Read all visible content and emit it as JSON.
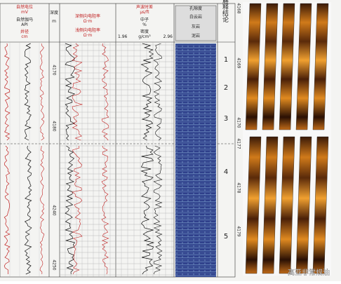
{
  "header": {
    "track1": {
      "sp": "自然电位",
      "sp_unit": "mV",
      "gr": "自然伽马",
      "gr_unit": "API",
      "cal": "井径",
      "cal_unit": "cm"
    },
    "depth": {
      "title": "深度",
      "unit": "m"
    },
    "track3": {
      "deep": "深侧向电阻率",
      "deep_unit": "Ω·m",
      "shallow": "浅侧向电阻率",
      "shallow_unit": "Ω·m"
    },
    "track4": {
      "ac": "声波时差",
      "ac_unit": "μs/ft",
      "cnl": "中子",
      "cnl_unit": "%",
      "den": "密度",
      "den_unit": "g/cm³",
      "den_min": 1.96,
      "den_max": 2.96
    },
    "track5": {
      "por": "孔隙度",
      "lith1": "白云岩",
      "lith2": "灰岩",
      "lith3": "泥岩"
    },
    "track6": {
      "title": "解释结论"
    }
  },
  "depth_labels": [
    4170,
    4180,
    4240,
    4250
  ],
  "conclusions": [
    1,
    2,
    3,
    4,
    5
  ],
  "core_depths": [
    4168,
    4169,
    4170,
    4177,
    4178,
    4179
  ],
  "watermark": "高亚非常规油"
}
